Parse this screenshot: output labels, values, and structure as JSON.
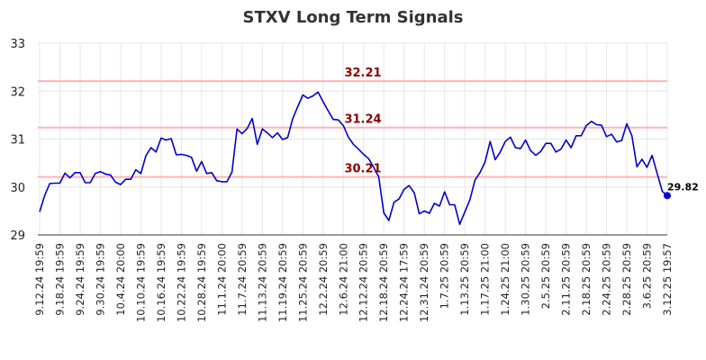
{
  "chart_data": {
    "type": "line",
    "title": "STXV Long Term Signals",
    "xlabel": "",
    "ylabel": "",
    "ylim": [
      29,
      33
    ],
    "y_ticks": [
      29,
      30,
      31,
      32,
      33
    ],
    "grid": true,
    "x_tick_labels": [
      "9.12.24 19:59",
      "9.18.24 19:59",
      "9.24.24 19:59",
      "9.30.24 19:59",
      "10.4.24 20:00",
      "10.10.24 19:59",
      "10.16.24 19:59",
      "10.22.24 19:59",
      "10.28.24 19:59",
      "11.1.24 20:00",
      "11.7.24 20:59",
      "11.13.24 20:59",
      "11.19.24 20:59",
      "11.25.24 20:59",
      "12.2.24 20:59",
      "12.6.24 21:00",
      "12.12.24 20:59",
      "12.18.24 20:59",
      "12.24.24 17:59",
      "12.31.24 20:59",
      "1.7.25 20:59",
      "1.13.25 20:59",
      "1.17.25 21:00",
      "1.24.25 21:00",
      "1.30.25 20:59",
      "2.5.25 20:59",
      "2.11.25 20:59",
      "2.18.25 20:59",
      "2.24.25 20:59",
      "2.28.25 20:59",
      "3.6.25 20:59",
      "3.12.25 19:57"
    ],
    "reference_lines": [
      {
        "value": 32.21,
        "label": "32.21"
      },
      {
        "value": 31.24,
        "label": "31.24"
      },
      {
        "value": 30.21,
        "label": "30.21"
      }
    ],
    "last_point_label": "29.82",
    "colors": {
      "line": "#0000cc",
      "reference": "#ffb3b3",
      "reference_text": "#8b0000",
      "grid": "#e6e6e6"
    },
    "series": [
      {
        "values": [
          29.48,
          29.82,
          30.07,
          30.08,
          30.08,
          30.29,
          30.19,
          30.3,
          30.3,
          30.09,
          30.09,
          30.28,
          30.32,
          30.27,
          30.25,
          30.1,
          30.05,
          30.16,
          30.16,
          30.36,
          30.28,
          30.65,
          30.82,
          30.73,
          31.02,
          30.98,
          31.01,
          30.67,
          30.68,
          30.66,
          30.62,
          30.33,
          30.53,
          30.28,
          30.3,
          30.13,
          30.11,
          30.11,
          30.31,
          31.21,
          31.11,
          31.22,
          31.43,
          30.89,
          31.21,
          31.13,
          31.03,
          31.13,
          30.99,
          31.03,
          31.42,
          31.68,
          31.92,
          31.85,
          31.9,
          31.98,
          31.78,
          31.59,
          31.41,
          31.4,
          31.28,
          31.04,
          30.89,
          30.79,
          30.68,
          30.59,
          30.41,
          30.21,
          29.46,
          29.3,
          29.68,
          29.75,
          29.95,
          30.03,
          29.88,
          29.44,
          29.5,
          29.45,
          29.66,
          29.6,
          29.9,
          29.63,
          29.63,
          29.22,
          29.48,
          29.73,
          30.14,
          30.3,
          30.52,
          30.95,
          30.57,
          30.73,
          30.95,
          31.04,
          30.82,
          30.8,
          30.98,
          30.76,
          30.66,
          30.74,
          30.91,
          30.91,
          30.73,
          30.79,
          30.98,
          30.82,
          31.07,
          31.07,
          31.28,
          31.37,
          31.3,
          31.29,
          31.05,
          31.1,
          30.94,
          30.97,
          31.32,
          31.07,
          30.42,
          30.58,
          30.41,
          30.66,
          30.28,
          29.91,
          29.82
        ]
      }
    ]
  }
}
